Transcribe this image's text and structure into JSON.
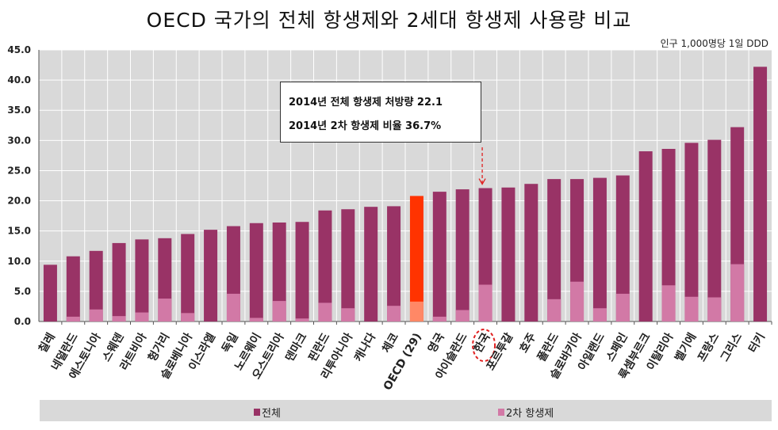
{
  "chart_data": {
    "type": "bar",
    "title": "OECD 국가의 전체 항생제와 2세대 항생제 사용량 비교",
    "unit_label": "인구 1,000명당 1일 DDD",
    "categories": [
      "칠레",
      "네덜란드",
      "에스토니아",
      "스웨덴",
      "라트비아",
      "헝가리",
      "슬로베니아",
      "이스라엘",
      "독일",
      "노르웨이",
      "오스트리아",
      "덴마크",
      "핀란드",
      "리투아니아",
      "캐나다",
      "체코",
      "OECD (29)",
      "영국",
      "아이슬란드",
      "한국",
      "포르투갈",
      "호주",
      "폴란드",
      "슬로바키아",
      "아일랜드",
      "스페인",
      "룩셈부르크",
      "이탈리아",
      "벨기에",
      "프랑스",
      "그리스",
      "터키"
    ],
    "series": [
      {
        "name": "전체",
        "color": "#993366",
        "values": [
          9.4,
          10.8,
          11.7,
          13.0,
          13.6,
          13.8,
          14.5,
          15.2,
          15.8,
          16.3,
          16.4,
          16.5,
          18.4,
          18.6,
          19.0,
          19.1,
          20.8,
          21.5,
          21.9,
          22.1,
          22.2,
          22.8,
          23.6,
          23.6,
          23.8,
          24.2,
          28.2,
          28.6,
          29.6,
          30.1,
          32.2,
          42.2
        ]
      },
      {
        "name": "2차 항생제",
        "color": "#d279a6",
        "values": [
          0,
          0.8,
          2.0,
          0.9,
          1.5,
          3.8,
          1.4,
          0,
          4.6,
          0.6,
          3.4,
          0.5,
          3.1,
          2.2,
          0,
          2.6,
          3.3,
          0.8,
          1.9,
          6.1,
          0,
          0,
          3.7,
          6.6,
          2.2,
          4.6,
          0,
          6.0,
          4.1,
          4.0,
          9.5,
          0
        ]
      }
    ],
    "highlight": {
      "category": "OECD (29)",
      "total_color": "#ff3300",
      "second_color": "#ff8866"
    },
    "marked_category": "한국",
    "yticks": [
      "0.0",
      "5.0",
      "10.0",
      "15.0",
      "20.0",
      "25.0",
      "30.0",
      "35.0",
      "40.0",
      "45.0"
    ],
    "ylim": [
      0,
      45
    ],
    "grid": true,
    "legend_position": "bottom",
    "annotation": [
      "2014년 전체 항생제 처방량 22.1",
      "2014년 2차 항생제 비율 36.7%"
    ]
  }
}
